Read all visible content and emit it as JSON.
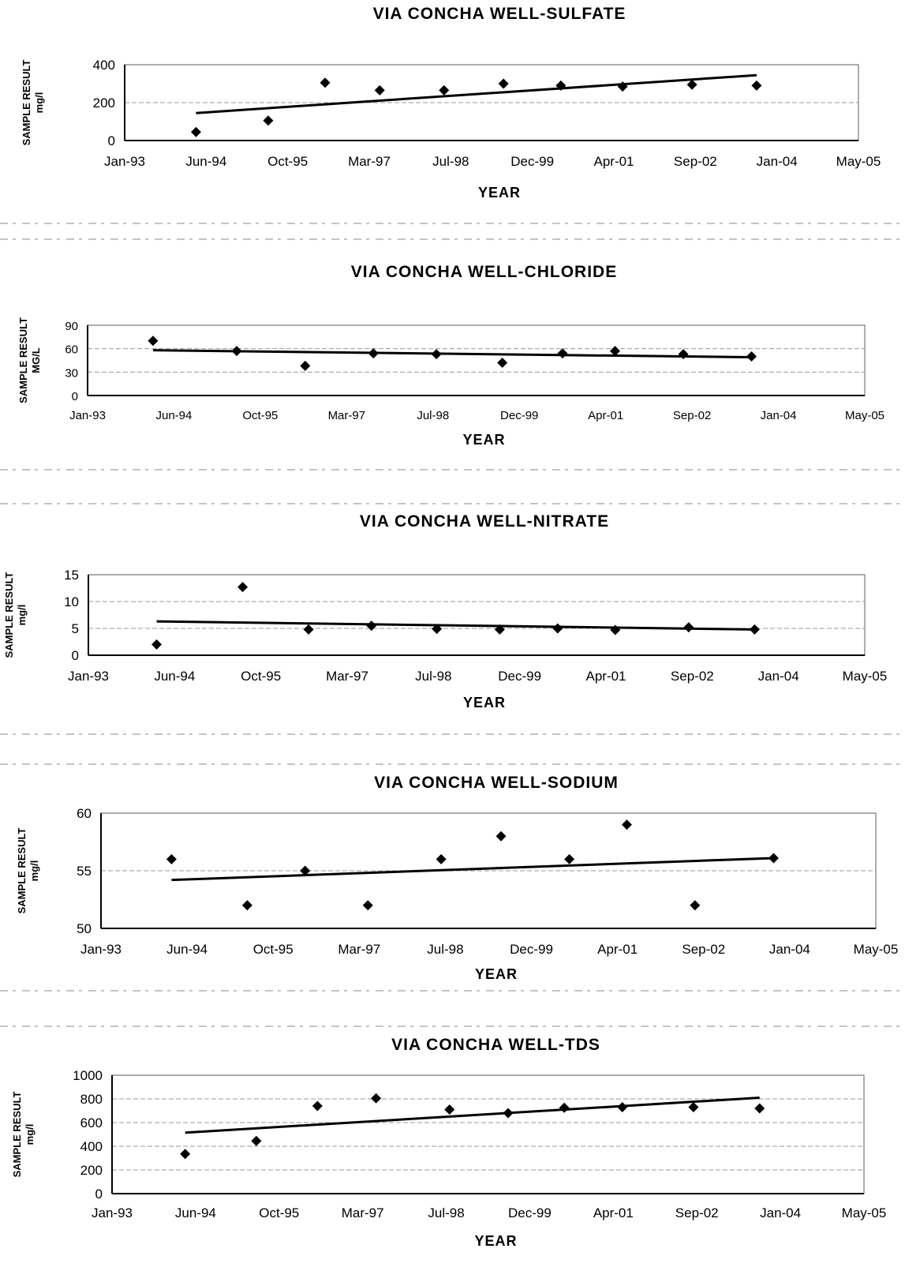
{
  "chart_data": [
    {
      "type": "scatter",
      "title": "VIA CONCHA WELL-SULFATE",
      "xlabel": "YEAR",
      "ylabel": [
        "SAMPLE RESULT",
        "mg/l"
      ],
      "xticks": [
        "Jan-93",
        "Jun-94",
        "Oct-95",
        "Mar-97",
        "Jul-98",
        "Dec-99",
        "Apr-01",
        "Sep-02",
        "Jan-04",
        "May-05"
      ],
      "xlim": [
        "1993-01-01",
        "2005-05-01"
      ],
      "yticks": [
        "0",
        "200",
        "400"
      ],
      "ylim": [
        0,
        400
      ],
      "grid": "horizontal",
      "marker": "diamond",
      "points": [
        {
          "x": "1994-03-15",
          "y": 45
        },
        {
          "x": "1995-06-01",
          "y": 105
        },
        {
          "x": "1996-05-15",
          "y": 305
        },
        {
          "x": "1997-04-15",
          "y": 265
        },
        {
          "x": "1998-05-15",
          "y": 265
        },
        {
          "x": "1999-05-15",
          "y": 300
        },
        {
          "x": "2000-05-01",
          "y": 290
        },
        {
          "x": "2001-05-15",
          "y": 285
        },
        {
          "x": "2002-07-15",
          "y": 295
        },
        {
          "x": "2003-08-15",
          "y": 290
        }
      ],
      "trendline": {
        "x": [
          "1994-03-15",
          "2003-08-15"
        ],
        "y": [
          145,
          345
        ]
      }
    },
    {
      "type": "scatter",
      "title": "VIA CONCHA WELL-CHLORIDE",
      "xlabel": "YEAR",
      "ylabel": [
        "SAMPLE RESULT",
        "MG/L"
      ],
      "xticks": [
        "Jan-93",
        "Jun-94",
        "Oct-95",
        "Mar-97",
        "Jul-98",
        "Dec-99",
        "Apr-01",
        "Sep-02",
        "Jan-04",
        "May-05"
      ],
      "xlim": [
        "1993-01-01",
        "2005-05-01"
      ],
      "yticks": [
        "0",
        "30",
        "60",
        "90"
      ],
      "ylim": [
        0,
        90
      ],
      "grid": "horizontal",
      "marker": "diamond",
      "points": [
        {
          "x": "1994-01-15",
          "y": 70
        },
        {
          "x": "1995-05-15",
          "y": 57
        },
        {
          "x": "1996-06-15",
          "y": 38
        },
        {
          "x": "1997-07-15",
          "y": 54
        },
        {
          "x": "1998-07-15",
          "y": 53
        },
        {
          "x": "1999-08-01",
          "y": 42
        },
        {
          "x": "2000-07-15",
          "y": 54
        },
        {
          "x": "2001-05-15",
          "y": 57
        },
        {
          "x": "2002-06-15",
          "y": 53
        },
        {
          "x": "2003-07-15",
          "y": 50
        }
      ],
      "trendline": {
        "x": [
          "1994-01-15",
          "2003-07-15"
        ],
        "y": [
          58,
          49
        ]
      }
    },
    {
      "type": "scatter",
      "title": "VIA CONCHA WELL-NITRATE",
      "xlabel": "YEAR",
      "ylabel": [
        "SAMPLE RESULT",
        "mg/l"
      ],
      "xticks": [
        "Jan-93",
        "Jun-94",
        "Oct-95",
        "Mar-97",
        "Jul-98",
        "Dec-99",
        "Apr-01",
        "Sep-02",
        "Jan-04",
        "May-05"
      ],
      "xlim": [
        "1993-01-01",
        "2005-05-01"
      ],
      "yticks": [
        "0",
        "5",
        "10",
        "15"
      ],
      "ylim": [
        0,
        15
      ],
      "grid": "horizontal",
      "marker": "diamond",
      "points": [
        {
          "x": "1994-02-01",
          "y": 2
        },
        {
          "x": "1995-06-15",
          "y": 12.7
        },
        {
          "x": "1996-07-01",
          "y": 4.8
        },
        {
          "x": "1997-07-01",
          "y": 5.5
        },
        {
          "x": "1998-07-15",
          "y": 4.9
        },
        {
          "x": "1999-07-15",
          "y": 4.8
        },
        {
          "x": "2000-06-15",
          "y": 5.0
        },
        {
          "x": "2001-05-15",
          "y": 4.7
        },
        {
          "x": "2002-07-15",
          "y": 5.2
        },
        {
          "x": "2003-08-01",
          "y": 4.8
        }
      ],
      "trendline": {
        "x": [
          "1994-02-01",
          "2003-08-01"
        ],
        "y": [
          6.3,
          4.8
        ]
      }
    },
    {
      "type": "scatter",
      "title": "VIA CONCHA WELL-SODIUM",
      "xlabel": "YEAR",
      "ylabel": [
        "SAMPLE RESULT",
        "mg/l"
      ],
      "xticks": [
        "Jan-93",
        "Jun-94",
        "Oct-95",
        "Mar-97",
        "Jul-98",
        "Dec-99",
        "Apr-01",
        "Sep-02",
        "Jan-04",
        "May-05"
      ],
      "xlim": [
        "1993-01-01",
        "2005-05-01"
      ],
      "yticks": [
        "50",
        "55",
        "60"
      ],
      "ylim": [
        50,
        60
      ],
      "grid": "horizontal",
      "marker": "diamond",
      "points": [
        {
          "x": "1994-02-15",
          "y": 56
        },
        {
          "x": "1995-05-01",
          "y": 52
        },
        {
          "x": "1996-04-01",
          "y": 55
        },
        {
          "x": "1997-04-01",
          "y": 52
        },
        {
          "x": "1998-06-01",
          "y": 56
        },
        {
          "x": "1999-05-15",
          "y": 58
        },
        {
          "x": "2000-06-15",
          "y": 56
        },
        {
          "x": "2001-05-15",
          "y": 59
        },
        {
          "x": "2002-06-15",
          "y": 52
        },
        {
          "x": "2003-09-15",
          "y": 56.1
        }
      ],
      "trendline": {
        "x": [
          "1994-02-15",
          "2003-09-15"
        ],
        "y": [
          54.2,
          56.1
        ]
      }
    },
    {
      "type": "scatter",
      "title": "VIA CONCHA WELL-TDS",
      "xlabel": "YEAR",
      "ylabel": [
        "SAMPLE RESULT",
        "mg/l"
      ],
      "xticks": [
        "Jan-93",
        "Jun-94",
        "Oct-95",
        "Mar-97",
        "Jul-98",
        "Dec-99",
        "Apr-01",
        "Sep-02",
        "Jan-04",
        "May-05"
      ],
      "xlim": [
        "1993-01-01",
        "2005-05-01"
      ],
      "yticks": [
        "0",
        "200",
        "400",
        "600",
        "800",
        "1000"
      ],
      "ylim": [
        0,
        1000
      ],
      "grid": "horizontal",
      "marker": "diamond",
      "points": [
        {
          "x": "1994-03-15",
          "y": 335
        },
        {
          "x": "1995-05-15",
          "y": 445
        },
        {
          "x": "1996-05-15",
          "y": 740
        },
        {
          "x": "1997-05-01",
          "y": 805
        },
        {
          "x": "1998-07-15",
          "y": 710
        },
        {
          "x": "1999-07-01",
          "y": 680
        },
        {
          "x": "2000-06-01",
          "y": 725
        },
        {
          "x": "2001-05-15",
          "y": 730
        },
        {
          "x": "2002-07-15",
          "y": 730
        },
        {
          "x": "2003-08-15",
          "y": 720
        }
      ],
      "trendline": {
        "x": [
          "1994-03-15",
          "2003-08-15"
        ],
        "y": [
          515,
          810
        ]
      }
    }
  ]
}
